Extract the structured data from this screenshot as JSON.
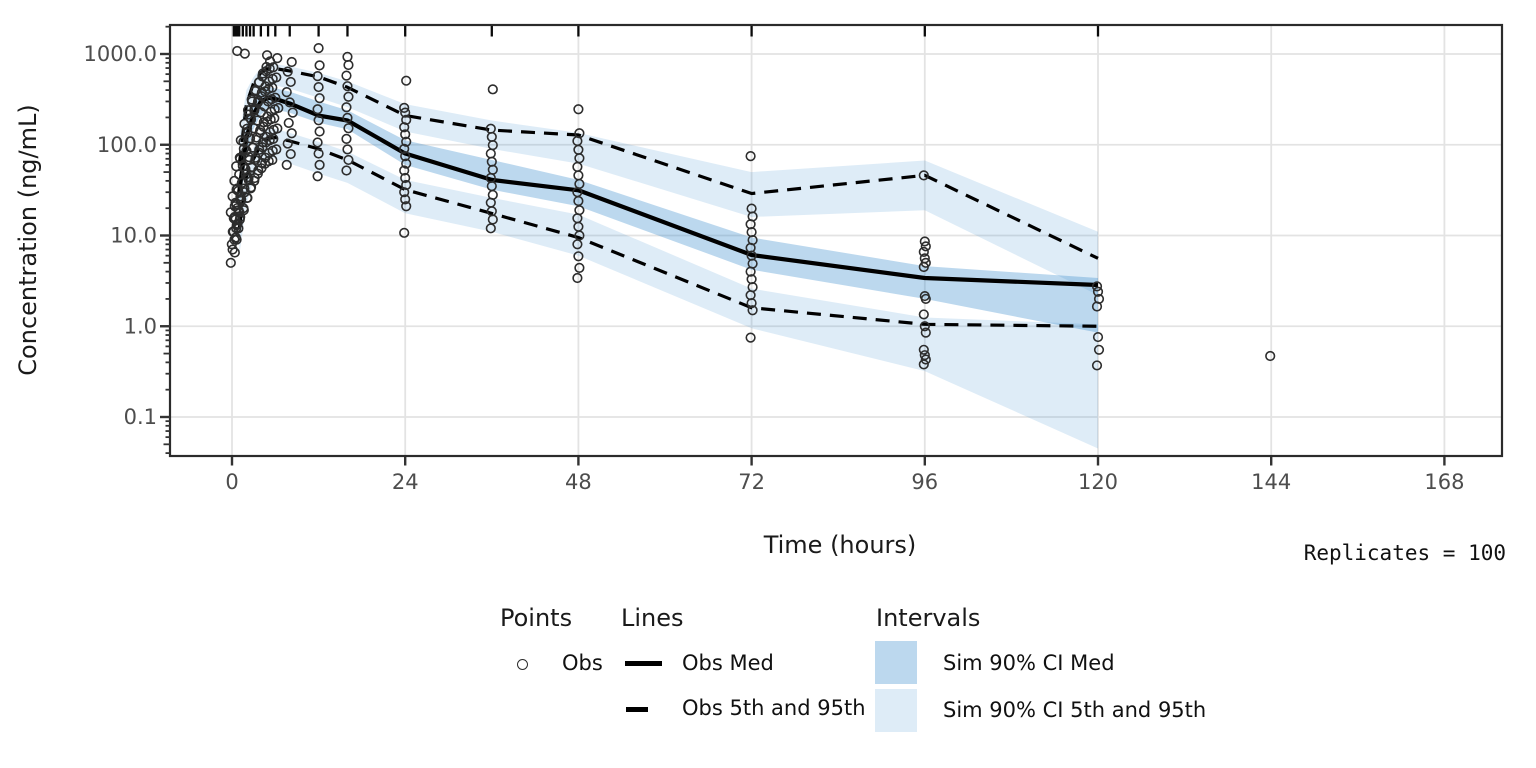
{
  "replicates_note": "Replicates = 100",
  "axes": {
    "x_title": "Time (hours)",
    "y_title": "Concentration (ng/mL)"
  },
  "legend": {
    "points_header": "Points",
    "lines_header": "Lines",
    "intervals_header": "Intervals",
    "obs_label": "Obs",
    "obs_med_label": "Obs Med",
    "obs_5_95_label": "Obs 5th and 95th",
    "sim_ci_med_label": "Sim 90% CI Med",
    "sim_ci_5_95_label": "Sim 90% CI 5th and 95th"
  },
  "colors": {
    "ci_med_fill": "rgba(51,136,204,0.33)",
    "ci_pi_fill": "rgba(51,136,204,0.16)",
    "obs_line": "#000000",
    "point_stroke": "#2d2d2d",
    "grid": "#e3e3e3",
    "panel_border": "#2b2b2b",
    "tick": "#333333",
    "tick_label": "#4d4d4d",
    "rug": "#0a0a0a"
  },
  "chart_data": {
    "type": "line",
    "subtype": "visual-predictive-check",
    "title": "",
    "xlabel": "Time (hours)",
    "ylabel": "Concentration (ng/mL)",
    "x_scale": "linear",
    "y_scale": "log10",
    "xlim": [
      -8.6,
      176
    ],
    "ylim": [
      0.037,
      2100
    ],
    "grid": "major-only",
    "legend_position": "bottom-center",
    "x_ticks": [
      {
        "v": 0,
        "label": "0"
      },
      {
        "v": 24,
        "label": "24"
      },
      {
        "v": 48,
        "label": "48"
      },
      {
        "v": 72,
        "label": "72"
      },
      {
        "v": 96,
        "label": "96"
      },
      {
        "v": 120,
        "label": "120"
      },
      {
        "v": 144,
        "label": "144"
      },
      {
        "v": 168,
        "label": "168"
      }
    ],
    "y_ticks": [
      {
        "v": 1000,
        "label": "1000.0"
      },
      {
        "v": 100,
        "label": "100.0"
      },
      {
        "v": 10,
        "label": "10.0"
      },
      {
        "v": 1,
        "label": "1.0"
      },
      {
        "v": 0.1,
        "label": "0.1"
      }
    ],
    "rug_times": [
      0.25,
      0.5,
      0.75,
      1,
      1.5,
      2,
      2.5,
      3,
      4,
      5,
      6,
      8,
      12,
      16,
      24,
      36,
      48,
      72,
      96,
      120
    ],
    "bin_times": [
      1,
      2,
      3,
      4,
      5,
      6,
      8,
      12,
      16,
      24,
      36,
      48,
      72,
      96,
      120
    ],
    "series": [
      {
        "name": "Obs Med",
        "style": "solid",
        "values": [
          30,
          120,
          220,
          300,
          330,
          320,
          285,
          210,
          185,
          80,
          41,
          31.5,
          6.1,
          3.4,
          2.85
        ]
      },
      {
        "name": "Obs 95th",
        "style": "dashed",
        "values": [
          60,
          280,
          480,
          620,
          700,
          690,
          650,
          560,
          430,
          210,
          145,
          128,
          29,
          46,
          5.6
        ]
      },
      {
        "name": "Obs 5th",
        "style": "dashed",
        "values": [
          12,
          45,
          70,
          100,
          118,
          120,
          110,
          90,
          68,
          32,
          17.5,
          9.5,
          1.6,
          1.05,
          1.0
        ]
      }
    ],
    "bands": [
      {
        "name": "Sim 90% CI 95th",
        "fill": "light",
        "lo": [
          60,
          210,
          330,
          420,
          460,
          450,
          415,
          330,
          260,
          140,
          90,
          62,
          16,
          19,
          2.2
        ],
        "hi": [
          120,
          400,
          560,
          700,
          780,
          770,
          730,
          620,
          500,
          280,
          185,
          135,
          50,
          67,
          11
        ]
      },
      {
        "name": "Sim 90% CI 5th",
        "fill": "light",
        "lo": [
          6,
          22,
          42,
          62,
          72,
          70,
          62,
          48,
          38,
          17.6,
          11,
          6,
          0.95,
          0.32,
          0.045
        ],
        "hi": [
          14,
          55,
          95,
          135,
          155,
          150,
          135,
          108,
          84,
          41,
          26,
          17,
          2.6,
          1.25,
          1.05
        ]
      },
      {
        "name": "Sim 90% CI Med",
        "fill": "medium",
        "lo": [
          18,
          75,
          150,
          215,
          250,
          245,
          225,
          175,
          148,
          60,
          32,
          21,
          4.2,
          2.0,
          0.85
        ],
        "hi": [
          45,
          180,
          300,
          395,
          430,
          420,
          385,
          300,
          240,
          112,
          68,
          41,
          9.5,
          4.6,
          3.4
        ]
      }
    ],
    "obs_points": [
      {
        "t": 0.25,
        "v": [
          5,
          6.5,
          8,
          9.5,
          11,
          13,
          15.5,
          18,
          21
        ]
      },
      {
        "t": 0.5,
        "v": [
          7,
          9,
          11,
          13.5,
          16,
          19,
          23,
          27,
          32
        ]
      },
      {
        "t": 0.75,
        "v": [
          9,
          12,
          15,
          18,
          22,
          27,
          33,
          40
        ]
      },
      {
        "t": 1,
        "v": [
          12,
          16,
          20,
          25,
          31,
          38,
          47,
          58,
          70,
          1080
        ]
      },
      {
        "t": 1.5,
        "v": [
          15,
          19,
          24,
          30,
          38,
          47,
          58,
          72,
          90,
          112,
          1010
        ]
      },
      {
        "t": 2,
        "v": [
          20,
          26,
          33,
          42,
          54,
          68,
          86,
          108,
          135,
          170,
          215
        ]
      },
      {
        "t": 2.5,
        "v": [
          26,
          34,
          44,
          57,
          73,
          93,
          118,
          150,
          190,
          240,
          300
        ]
      },
      {
        "t": 3,
        "v": [
          33,
          43,
          56,
          72,
          93,
          120,
          152,
          195,
          250,
          315,
          400
        ]
      },
      {
        "t": 3.5,
        "v": [
          40,
          52,
          68,
          88,
          113,
          145,
          185,
          238,
          305,
          390,
          490
        ]
      },
      {
        "t": 4,
        "v": [
          48,
          63,
          82,
          106,
          137,
          177,
          228,
          293,
          377,
          485,
          610
        ]
      },
      {
        "t": 4.5,
        "v": [
          55,
          72,
          94,
          122,
          158,
          205,
          265,
          342,
          440,
          565,
          720
        ]
      },
      {
        "t": 5,
        "v": [
          62,
          81,
          106,
          138,
          179,
          232,
          300,
          388,
          500,
          645,
          830,
          970
        ]
      },
      {
        "t": 5.5,
        "v": [
          66,
          86,
          112,
          146,
          190,
          246,
          318,
          412,
          532,
          690
        ]
      },
      {
        "t": 6,
        "v": [
          68,
          89,
          116,
          151,
          196,
          254,
          330,
          426,
          552,
          715,
          900
        ]
      },
      {
        "t": 8,
        "v": [
          60,
          79,
          103,
          134,
          174,
          226,
          293,
          380,
          492,
          640,
          816
        ]
      },
      {
        "t": 12,
        "v": [
          45,
          60,
          80,
          106,
          140,
          186,
          246,
          326,
          432,
          570,
          750,
          1160
        ]
      },
      {
        "t": 16,
        "v": [
          52,
          68,
          89,
          116,
          152,
          198,
          259,
          338,
          442,
          578,
          756,
          930
        ]
      },
      {
        "t": 24,
        "v": [
          10.7,
          21,
          25,
          30,
          36,
          43,
          52,
          62,
          75,
          90,
          108,
          130,
          156,
          188,
          226,
          255,
          508
        ]
      },
      {
        "t": 36,
        "v": [
          12,
          15,
          18.5,
          23,
          28,
          35,
          43,
          53,
          65,
          80,
          99,
          122,
          150,
          408
        ]
      },
      {
        "t": 48,
        "v": [
          3.4,
          4.4,
          5.9,
          8,
          10,
          12.5,
          15.5,
          19,
          24,
          30,
          37,
          46,
          57,
          71,
          88,
          110,
          134,
          246
        ]
      },
      {
        "t": 72,
        "v": [
          0.75,
          1.5,
          1.8,
          2.2,
          2.7,
          3.3,
          4.0,
          4.9,
          6.0,
          7.3,
          8.9,
          10.9,
          13.3,
          16.2,
          19.8,
          75
        ]
      },
      {
        "t": 96,
        "v": [
          0.38,
          0.43,
          0.48,
          0.55,
          0.85,
          1.0,
          1.35,
          2.0,
          2.15,
          4.5,
          5.0,
          5.6,
          6.6,
          7.6,
          8.6,
          46
        ]
      },
      {
        "t": 120,
        "v": [
          0.37,
          0.55,
          0.76,
          1.65,
          2.0,
          2.4,
          2.75
        ]
      },
      {
        "t": 144,
        "v": [
          0.47
        ]
      }
    ]
  }
}
